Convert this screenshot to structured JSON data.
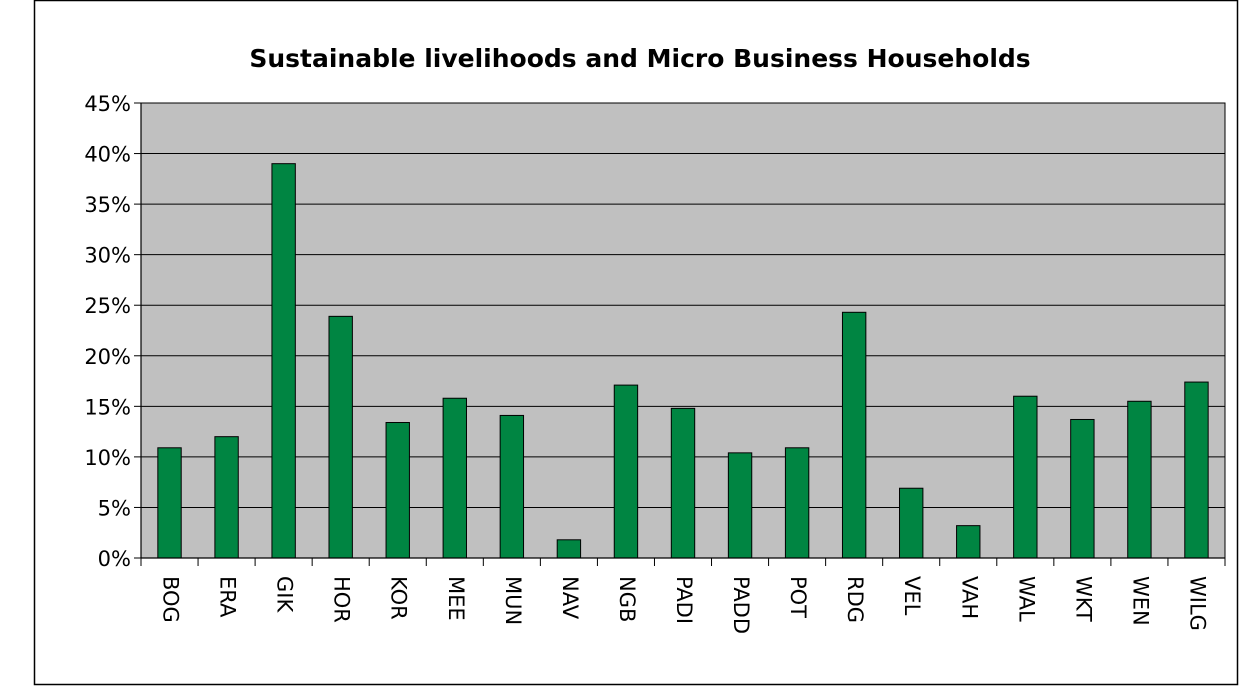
{
  "chart_data": {
    "type": "bar",
    "title": "Sustainable livelihoods and Micro Business Households",
    "xlabel": "",
    "ylabel": "",
    "ylim": [
      0,
      45
    ],
    "y_ticks": [
      0,
      5,
      10,
      15,
      20,
      25,
      30,
      35,
      40,
      45
    ],
    "y_tick_format": "percent",
    "categories": [
      "BOG",
      "ERA",
      "GIK",
      "HOR",
      "KOR",
      "MEE",
      "MUN",
      "NAV",
      "NGB",
      "PADI",
      "PADD",
      "POT",
      "RDG",
      "VEL",
      "VAH",
      "WAL",
      "WKT",
      "WEN",
      "WILG"
    ],
    "values": [
      10.9,
      12.0,
      39.0,
      23.9,
      13.4,
      15.8,
      14.1,
      1.8,
      17.1,
      14.8,
      10.4,
      10.9,
      24.3,
      6.9,
      3.2,
      16.0,
      13.7,
      15.5,
      17.4
    ],
    "grid": true,
    "legend": "none",
    "colors": {
      "bar": "#008542",
      "plot_background": "#c0c0c0",
      "gridline": "#000000"
    }
  }
}
